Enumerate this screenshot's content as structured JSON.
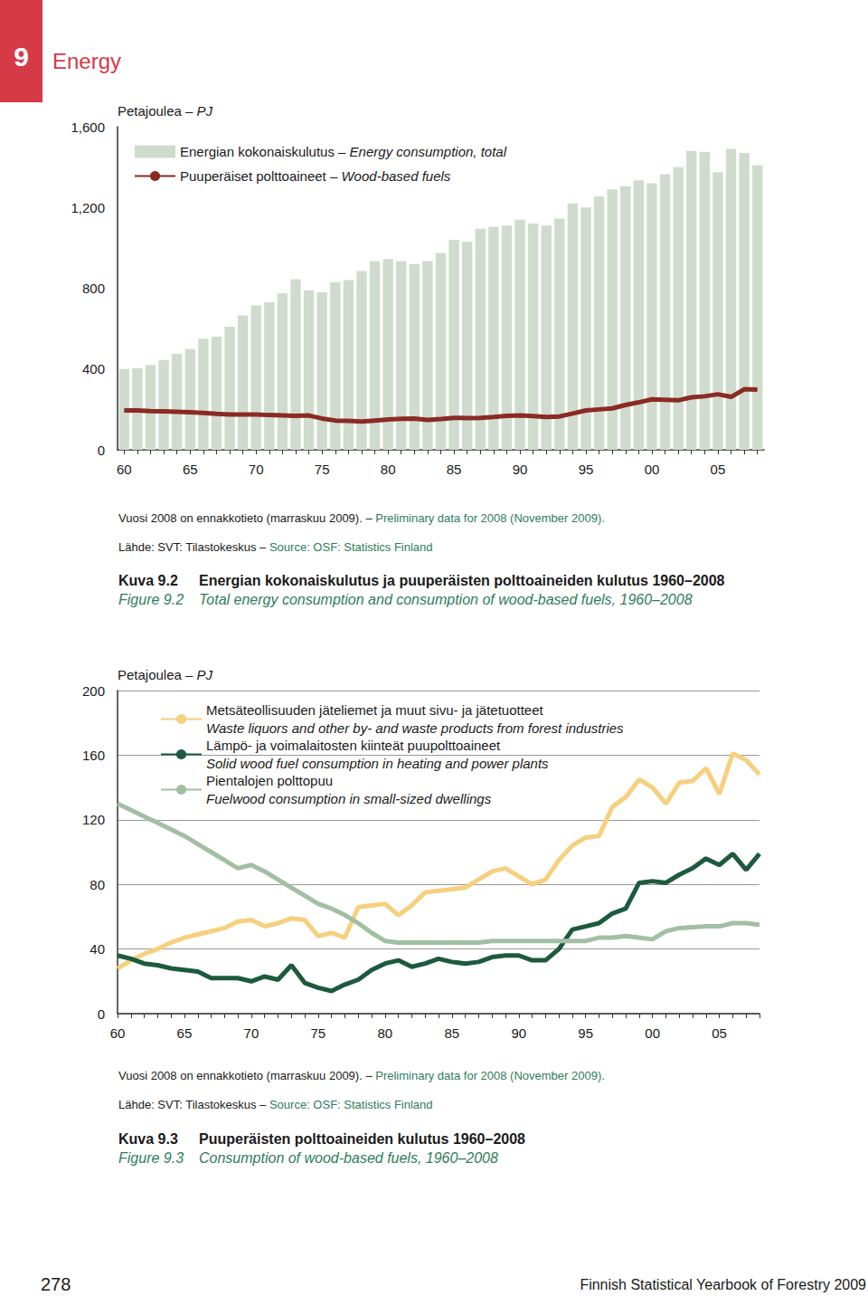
{
  "page": {
    "section_number": "9",
    "section_title": "Energy",
    "page_number": "278",
    "footer": "Finnish Statistical Yearbook of Forestry 2009"
  },
  "chart_data": [
    {
      "type": "bar",
      "ylabel": "Petajoulea – PJ",
      "categories": [
        "60",
        null,
        null,
        null,
        null,
        "65",
        null,
        null,
        null,
        null,
        "70",
        null,
        null,
        null,
        null,
        "75",
        null,
        null,
        null,
        null,
        "80",
        null,
        null,
        null,
        null,
        "85",
        null,
        null,
        null,
        null,
        "90",
        null,
        null,
        null,
        null,
        "95",
        null,
        null,
        null,
        null,
        "00",
        null,
        null,
        null,
        null,
        "05",
        null,
        null,
        null
      ],
      "series": [
        {
          "name": "Energian kokonaiskulutus – Energy consumption, total",
          "type": "bar",
          "color": "#cfdccd",
          "values": [
            400,
            405,
            420,
            445,
            475,
            500,
            550,
            560,
            610,
            665,
            715,
            730,
            775,
            845,
            790,
            780,
            830,
            840,
            885,
            935,
            945,
            935,
            920,
            935,
            975,
            1040,
            1030,
            1095,
            1105,
            1110,
            1140,
            1120,
            1110,
            1145,
            1220,
            1200,
            1255,
            1290,
            1305,
            1335,
            1320,
            1365,
            1400,
            1480,
            1475,
            1375,
            1490,
            1470,
            1410
          ]
        },
        {
          "name": "Puuperäiset polttoaineet – Wood-based fuels",
          "type": "line",
          "color": "#8b2a24",
          "values": [
            195,
            195,
            192,
            190,
            188,
            186,
            183,
            178,
            175,
            175,
            175,
            172,
            170,
            168,
            170,
            155,
            145,
            143,
            140,
            145,
            150,
            153,
            155,
            148,
            152,
            158,
            157,
            158,
            162,
            168,
            170,
            167,
            163,
            165,
            180,
            195,
            200,
            205,
            222,
            235,
            250,
            248,
            245,
            260,
            265,
            275,
            262,
            300,
            298
          ]
        }
      ],
      "ylim": [
        0,
        1600
      ],
      "yticks": [
        0,
        400,
        800,
        1200,
        1600
      ],
      "grid": false,
      "legend": "upper left",
      "notes": [
        {
          "fi": "Vuosi 2008 on ennakkotieto (marraskuu 2009). – ",
          "en": "Preliminary data for 2008 (November 2009)."
        },
        {
          "fi": "Lähde: SVT: Tilastokeskus – ",
          "en": "Source: OSF: Statistics Finland"
        }
      ],
      "caption": {
        "fi_label": "Kuva 9.2",
        "fi": "Energian kokonaiskulutus ja puuperäisten polttoaineiden kulutus 1960–2008",
        "en_label": "Figure 9.2",
        "en": "Total energy consumption and consumption of wood-based fuels, 1960–2008"
      }
    },
    {
      "type": "line",
      "ylabel": "Petajoulea – PJ",
      "categories": [
        "60",
        null,
        null,
        null,
        null,
        "65",
        null,
        null,
        null,
        null,
        "70",
        null,
        null,
        null,
        null,
        "75",
        null,
        null,
        null,
        null,
        "80",
        null,
        null,
        null,
        null,
        "85",
        null,
        null,
        null,
        null,
        "90",
        null,
        null,
        null,
        null,
        "95",
        null,
        null,
        null,
        null,
        "00",
        null,
        null,
        null,
        null,
        "05",
        null,
        null,
        null
      ],
      "series": [
        {
          "name": "Metsäteollisuuden jäteliemet ja muut sivu- ja jätetuotteet\nWaste liquors and other by- and waste products from forest industries",
          "color": "#f6d07e",
          "values": [
            28,
            33,
            37,
            40,
            44,
            47,
            49,
            51,
            53,
            57,
            58,
            54,
            56,
            59,
            58,
            48,
            50,
            47,
            66,
            67,
            68,
            61,
            67,
            75,
            76,
            77,
            78,
            83,
            88,
            90,
            85,
            80,
            83,
            95,
            104,
            109,
            110,
            128,
            134,
            145,
            140,
            130,
            143,
            144,
            152,
            136,
            161,
            157,
            148
          ]
        },
        {
          "name": "Lämpö- ja voimalaitosten kiinteät puupolttoaineet\nSolid wood fuel consumption in heating and power plants",
          "color": "#1d5a3d",
          "values": [
            36,
            34,
            31,
            30,
            28,
            27,
            26,
            22,
            22,
            22,
            20,
            23,
            21,
            30,
            19,
            16,
            14,
            18,
            21,
            27,
            31,
            33,
            29,
            31,
            34,
            32,
            31,
            32,
            35,
            36,
            36,
            33,
            33,
            40,
            52,
            54,
            56,
            62,
            65,
            81,
            82,
            81,
            86,
            90,
            96,
            92,
            99,
            89,
            99
          ]
        },
        {
          "name": "Pientalojen polttopuu\nFuelwood consumption in small-sized dwellings",
          "color": "#a3bfa3",
          "values": [
            130,
            126,
            122,
            118,
            114,
            110,
            105,
            100,
            95,
            90,
            92,
            88,
            83,
            78,
            73,
            68,
            65,
            61,
            56,
            50,
            45,
            44,
            44,
            44,
            44,
            44,
            44,
            44,
            45,
            45,
            45,
            45,
            45,
            45,
            45,
            45,
            47,
            47,
            48,
            47,
            46,
            51,
            53,
            53.5,
            54,
            54,
            56,
            56,
            55
          ]
        }
      ],
      "ylim": [
        0,
        200
      ],
      "yticks": [
        0,
        40,
        80,
        120,
        160,
        200
      ],
      "grid": true,
      "legend": "upper left",
      "notes": [
        {
          "fi": "Vuosi 2008 on ennakkotieto (marraskuu 2009). – ",
          "en": "Preliminary data for 2008 (November 2009)."
        },
        {
          "fi": "Lähde: SVT: Tilastokeskus – ",
          "en": "Source: OSF: Statistics Finland"
        }
      ],
      "caption": {
        "fi_label": "Kuva 9.3",
        "fi": "Puuperäisten polttoaineiden kulutus 1960–2008",
        "en_label": "Figure 9.3",
        "en": "Consumption of wood-based fuels, 1960–2008"
      }
    }
  ]
}
